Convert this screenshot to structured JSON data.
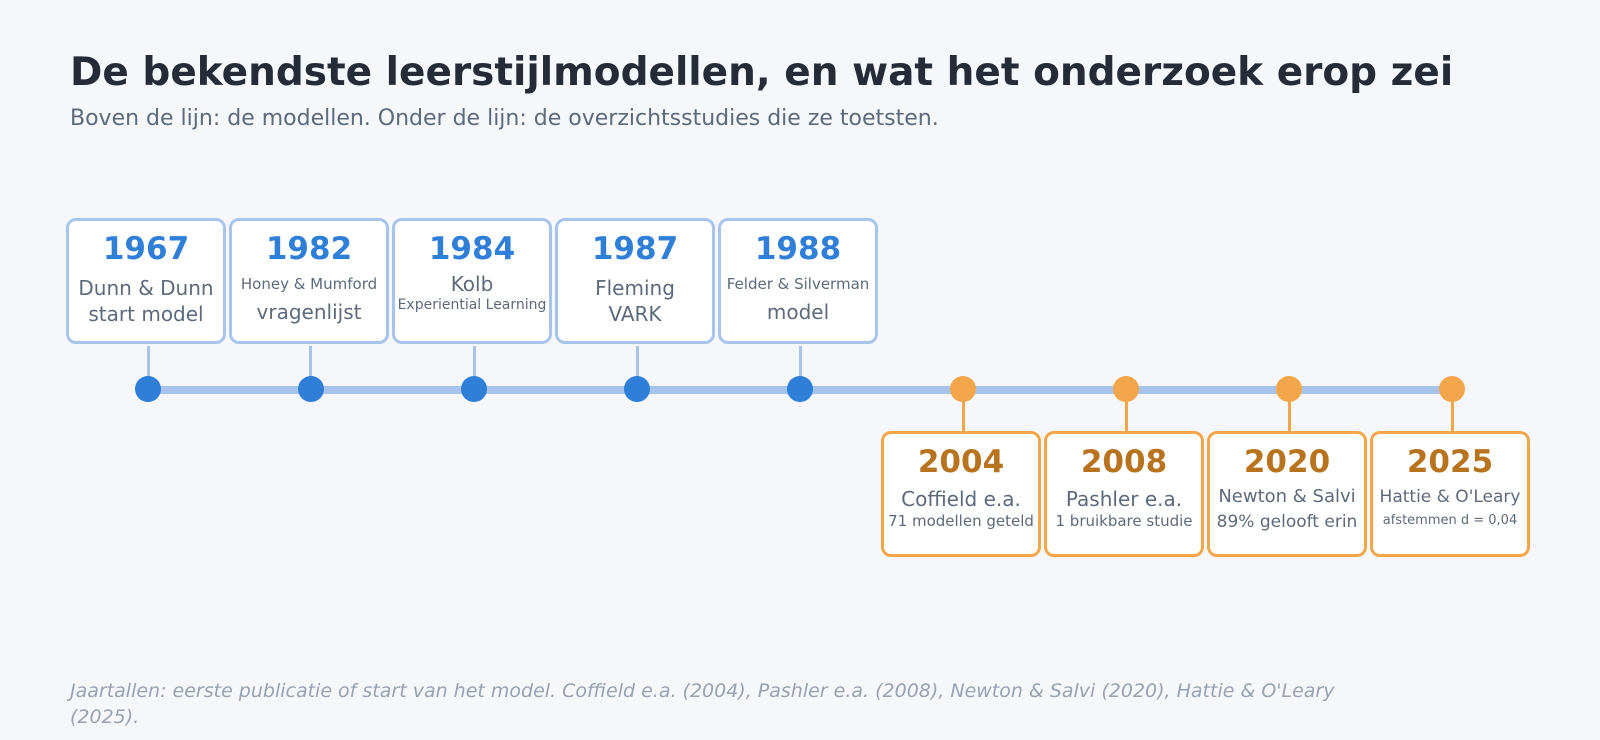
{
  "header": {
    "title": "De bekendste leerstijlmodellen, en wat het onderzoek erop zei",
    "subtitle": "Boven de lijn: de modellen. Onder de lijn: de overzichtsstudies die ze toetsten."
  },
  "colors": {
    "models_accent": "#2f7ed8",
    "models_line": "#a8c4ea",
    "studies_accent": "#f4a64a",
    "studies_year": "#b8731e"
  },
  "models": [
    {
      "year": "1967",
      "line1": "Dunn & Dunn",
      "line2": "start model"
    },
    {
      "year": "1982",
      "line1": "Honey & Mumford",
      "line2": "vragenlijst"
    },
    {
      "year": "1984",
      "line1": "Kolb",
      "line2": "Experiential Learning"
    },
    {
      "year": "1987",
      "line1": "Fleming",
      "line2": "VARK"
    },
    {
      "year": "1988",
      "line1": "Felder & Silverman",
      "line2": "model"
    }
  ],
  "studies": [
    {
      "year": "2004",
      "line1": "Coffield e.a.",
      "line2": "71 modellen geteld"
    },
    {
      "year": "2008",
      "line1": "Pashler e.a.",
      "line2": "1 bruikbare studie"
    },
    {
      "year": "2020",
      "line1": "Newton & Salvi",
      "line2": "89% gelooft erin"
    },
    {
      "year": "2025",
      "line1": "Hattie & O'Leary",
      "line2": "afstemmen d = 0,04"
    }
  ],
  "footnote": "Jaartallen: eerste publicatie of start van het model. Coffield e.a. (2004), Pashler e.a. (2008), Newton & Salvi (2020), Hattie & O'Leary (2025)."
}
